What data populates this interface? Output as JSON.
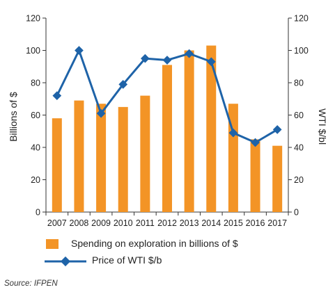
{
  "chart_data": {
    "type": "bar",
    "categories": [
      "2007",
      "2008",
      "2009",
      "2010",
      "2011",
      "2012",
      "2013",
      "2014",
      "2015",
      "2016",
      "2017"
    ],
    "series": [
      {
        "name": "Spending on exploration in billions of $",
        "type": "bar",
        "axis": "left",
        "color": "#F39426",
        "values": [
          58,
          69,
          67,
          65,
          72,
          91,
          100,
          103,
          67,
          45,
          41
        ]
      },
      {
        "name": "Price of WTI $/b",
        "type": "line",
        "axis": "right",
        "color": "#1E63A8",
        "values": [
          72,
          100,
          61,
          79,
          95,
          94,
          98,
          93,
          49,
          43,
          51
        ]
      }
    ],
    "ylabel": "Billions of $",
    "y2label": "WTI $/bl",
    "ylim": [
      0,
      120
    ],
    "y2lim": [
      0,
      120
    ],
    "yticks": [
      0,
      20,
      40,
      60,
      80,
      100,
      120
    ],
    "y2ticks": [
      0,
      20,
      40,
      60,
      80,
      100,
      120
    ],
    "grid": false,
    "legend_position": "bottom-left"
  },
  "source": "Source: IFPEN"
}
